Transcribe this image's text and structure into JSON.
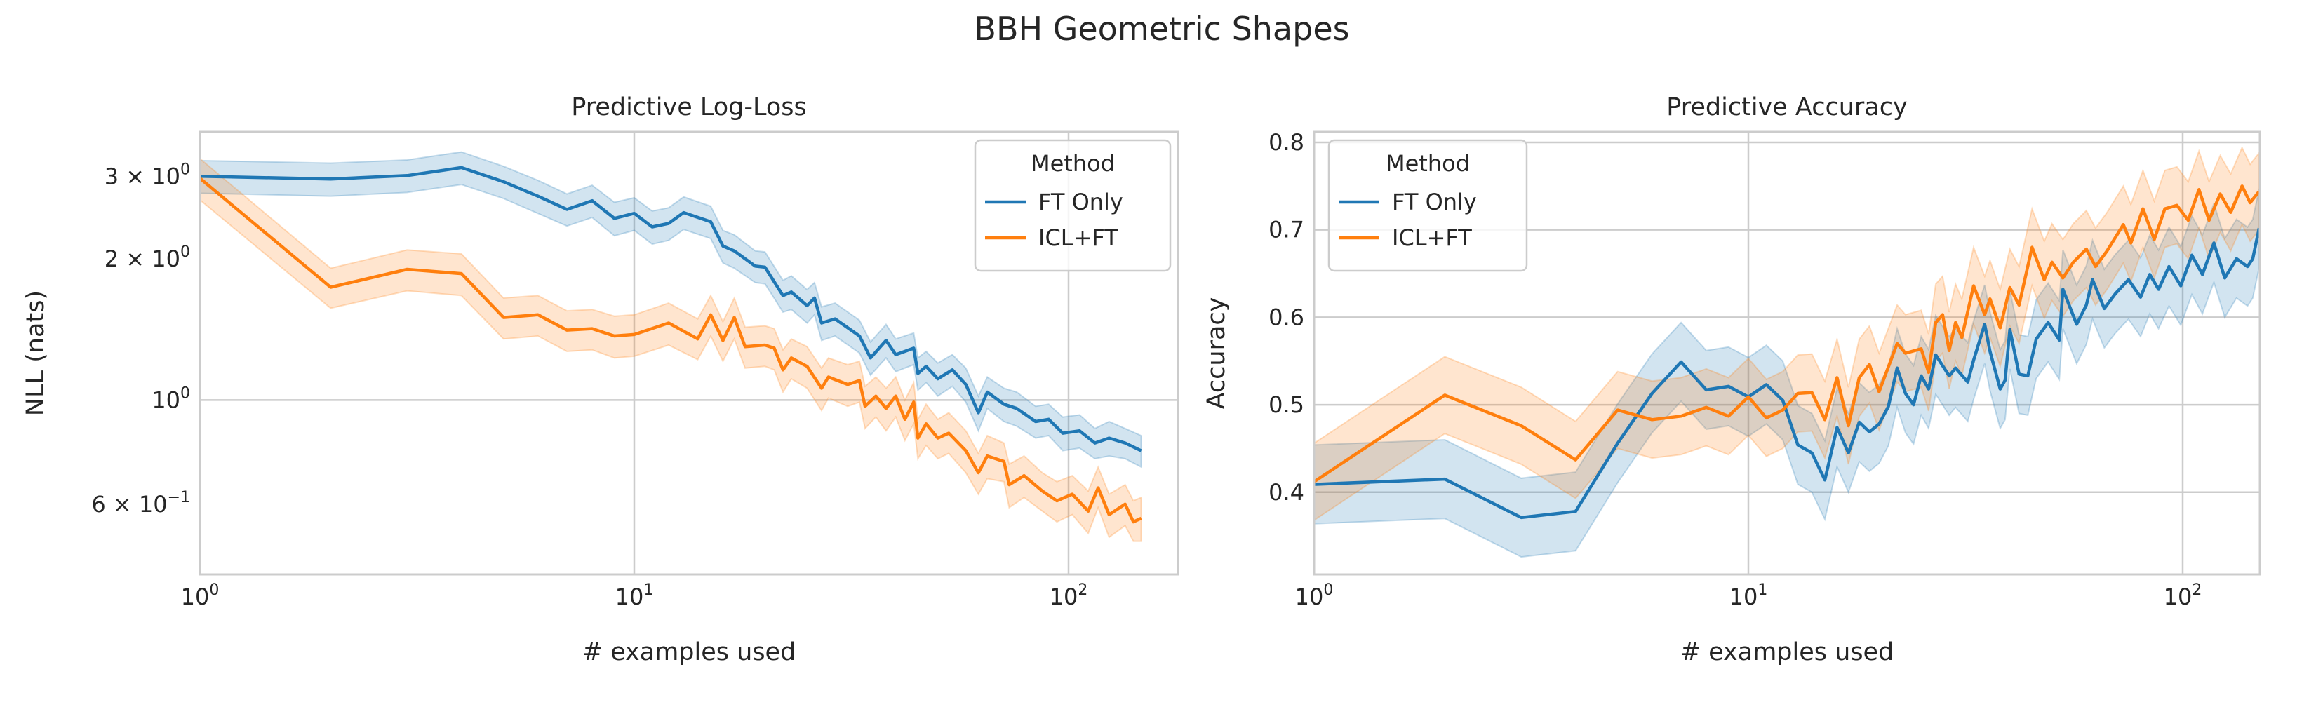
{
  "figure": {
    "title": "BBH Geometric Shapes"
  },
  "colors": {
    "FT Only": "#1f77b4",
    "ICL+FT": "#ff7f0e",
    "grid": "#cccccc",
    "text": "#262626"
  },
  "chart_data": [
    {
      "type": "line",
      "title": "Predictive Log-Loss",
      "xlabel": "# examples used",
      "ylabel": "NLL (nats)",
      "xscale": "log",
      "yscale": "log",
      "xlim": [
        1,
        230
      ],
      "ylim": [
        0.425,
        3.73
      ],
      "grid": true,
      "legend": {
        "title": "Method",
        "placement": "top-right",
        "entries": [
          "FT Only",
          "ICL+FT"
        ]
      },
      "xticks": [
        {
          "value": 1,
          "base": "10",
          "exp": "0"
        },
        {
          "value": 10,
          "base": "10",
          "exp": "1"
        },
        {
          "value": 100,
          "base": "10",
          "exp": "2"
        }
      ],
      "yticks": [
        {
          "value": 3,
          "mantissa": "3 × ",
          "base": "10",
          "exp": "0"
        },
        {
          "value": 2,
          "mantissa": "2 × ",
          "base": "10",
          "exp": "0"
        },
        {
          "value": 1,
          "mantissa": "",
          "base": "10",
          "exp": "0"
        },
        {
          "value": 0.6,
          "mantissa": "6 × ",
          "base": "10",
          "exp": "−1"
        }
      ],
      "series": [
        {
          "name": "FT Only",
          "x": [
            1,
            2,
            3,
            4,
            5,
            6,
            7,
            8,
            9,
            10,
            11,
            12,
            13,
            15,
            16,
            17,
            19,
            20,
            22,
            23,
            25,
            26,
            27,
            29,
            33,
            35,
            38,
            40,
            44,
            45,
            47,
            50,
            54,
            58,
            62,
            65,
            71,
            76,
            84,
            90,
            97,
            106,
            115,
            124,
            135,
            147
          ],
          "y": [
            3.0,
            2.96,
            3.01,
            3.13,
            2.92,
            2.72,
            2.55,
            2.66,
            2.44,
            2.5,
            2.34,
            2.38,
            2.51,
            2.4,
            2.13,
            2.08,
            1.93,
            1.92,
            1.67,
            1.7,
            1.59,
            1.65,
            1.46,
            1.49,
            1.37,
            1.23,
            1.34,
            1.25,
            1.29,
            1.14,
            1.18,
            1.11,
            1.16,
            1.08,
            0.94,
            1.04,
            0.98,
            0.96,
            0.9,
            0.91,
            0.85,
            0.86,
            0.81,
            0.83,
            0.81,
            0.78
          ],
          "ci_lower": [
            2.76,
            2.72,
            2.77,
            2.88,
            2.69,
            2.5,
            2.35,
            2.45,
            2.24,
            2.3,
            2.15,
            2.19,
            2.31,
            2.21,
            1.96,
            1.91,
            1.78,
            1.77,
            1.54,
            1.56,
            1.46,
            1.52,
            1.34,
            1.37,
            1.26,
            1.13,
            1.23,
            1.15,
            1.19,
            1.05,
            1.09,
            1.02,
            1.07,
            0.99,
            0.86,
            0.96,
            0.9,
            0.88,
            0.83,
            0.84,
            0.78,
            0.79,
            0.75,
            0.76,
            0.75,
            0.72
          ],
          "ci_upper": [
            3.24,
            3.2,
            3.25,
            3.38,
            3.15,
            2.94,
            2.75,
            2.87,
            2.64,
            2.7,
            2.53,
            2.57,
            2.71,
            2.59,
            2.3,
            2.25,
            2.08,
            2.07,
            1.8,
            1.84,
            1.72,
            1.78,
            1.58,
            1.61,
            1.48,
            1.33,
            1.45,
            1.35,
            1.39,
            1.23,
            1.27,
            1.2,
            1.25,
            1.17,
            1.02,
            1.12,
            1.06,
            1.04,
            0.97,
            0.98,
            0.92,
            0.93,
            0.87,
            0.9,
            0.87,
            0.84
          ]
        },
        {
          "name": "ICL+FT",
          "x": [
            1,
            2,
            3,
            4,
            5,
            6,
            7,
            8,
            9,
            10,
            12,
            14,
            15,
            16,
            17,
            18,
            20,
            21,
            22,
            23,
            25,
            27,
            28,
            31,
            33,
            34,
            36,
            38,
            40,
            42,
            44,
            45,
            47,
            50,
            53,
            58,
            62,
            65,
            71,
            73,
            79,
            87,
            94,
            102,
            111,
            117,
            124,
            135,
            141,
            147
          ],
          "y": [
            2.97,
            1.74,
            1.9,
            1.86,
            1.5,
            1.52,
            1.41,
            1.42,
            1.37,
            1.38,
            1.46,
            1.35,
            1.52,
            1.34,
            1.5,
            1.3,
            1.31,
            1.29,
            1.16,
            1.23,
            1.18,
            1.06,
            1.12,
            1.08,
            1.1,
            0.97,
            1.02,
            0.96,
            1.02,
            0.91,
            0.99,
            0.83,
            0.89,
            0.83,
            0.85,
            0.78,
            0.7,
            0.76,
            0.74,
            0.66,
            0.69,
            0.64,
            0.61,
            0.63,
            0.58,
            0.65,
            0.57,
            0.6,
            0.55,
            0.56
          ],
          "ci_lower": [
            2.67,
            1.57,
            1.71,
            1.67,
            1.35,
            1.37,
            1.27,
            1.28,
            1.23,
            1.24,
            1.31,
            1.22,
            1.37,
            1.21,
            1.35,
            1.17,
            1.18,
            1.16,
            1.04,
            1.11,
            1.06,
            0.95,
            1.01,
            0.97,
            0.99,
            0.87,
            0.92,
            0.86,
            0.92,
            0.82,
            0.89,
            0.75,
            0.8,
            0.75,
            0.77,
            0.7,
            0.63,
            0.68,
            0.67,
            0.59,
            0.62,
            0.58,
            0.55,
            0.57,
            0.52,
            0.59,
            0.51,
            0.54,
            0.5,
            0.5
          ],
          "ci_upper": [
            3.27,
            1.91,
            2.09,
            2.05,
            1.65,
            1.67,
            1.55,
            1.56,
            1.51,
            1.52,
            1.61,
            1.49,
            1.67,
            1.47,
            1.65,
            1.43,
            1.44,
            1.42,
            1.28,
            1.35,
            1.3,
            1.17,
            1.23,
            1.19,
            1.21,
            1.07,
            1.12,
            1.06,
            1.12,
            1.0,
            1.09,
            0.91,
            0.98,
            0.91,
            0.94,
            0.86,
            0.77,
            0.84,
            0.81,
            0.73,
            0.76,
            0.7,
            0.67,
            0.69,
            0.64,
            0.72,
            0.63,
            0.66,
            0.61,
            0.62
          ]
        }
      ]
    },
    {
      "type": "line",
      "title": "Predictive Accuracy",
      "xlabel": "# examples used",
      "ylabel": "Accuracy",
      "xscale": "log",
      "yscale": "linear",
      "xlim": [
        1,
        230
      ],
      "ylim": [
        0.306,
        0.812
      ],
      "grid": true,
      "legend": {
        "title": "Method",
        "placement": "top-left",
        "entries": [
          "FT Only",
          "ICL+FT"
        ]
      },
      "xticks": [
        {
          "value": 1,
          "base": "10",
          "exp": "0"
        },
        {
          "value": 10,
          "base": "10",
          "exp": "1"
        },
        {
          "value": 100,
          "base": "10",
          "exp": "2"
        }
      ],
      "yticks": [
        {
          "value": 0.4,
          "label": "0.4"
        },
        {
          "value": 0.5,
          "label": "0.5"
        },
        {
          "value": 0.6,
          "label": "0.6"
        },
        {
          "value": 0.7,
          "label": "0.7"
        },
        {
          "value": 0.8,
          "label": "0.8"
        }
      ],
      "series": [
        {
          "name": "FT Only",
          "x": [
            1,
            2,
            3,
            4,
            5,
            6,
            7,
            8,
            9,
            10,
            11,
            12,
            13,
            14,
            15,
            16,
            17,
            18,
            19,
            20,
            21,
            22,
            23,
            24,
            25,
            26,
            27,
            29,
            30,
            32,
            33,
            35,
            36,
            38,
            39,
            40,
            42,
            44,
            46,
            49,
            52,
            53,
            57,
            60,
            62,
            66,
            70,
            75,
            80,
            84,
            88,
            93,
            99,
            105,
            111,
            118,
            125,
            133,
            141,
            145,
            150
          ],
          "y": [
            0.409,
            0.415,
            0.371,
            0.378,
            0.456,
            0.513,
            0.549,
            0.517,
            0.521,
            0.509,
            0.523,
            0.505,
            0.454,
            0.445,
            0.414,
            0.474,
            0.445,
            0.48,
            0.469,
            0.478,
            0.498,
            0.542,
            0.513,
            0.5,
            0.533,
            0.518,
            0.557,
            0.533,
            0.542,
            0.526,
            0.551,
            0.592,
            0.561,
            0.518,
            0.528,
            0.586,
            0.535,
            0.533,
            0.575,
            0.594,
            0.574,
            0.632,
            0.592,
            0.614,
            0.643,
            0.61,
            0.627,
            0.643,
            0.623,
            0.649,
            0.632,
            0.658,
            0.636,
            0.671,
            0.649,
            0.685,
            0.645,
            0.667,
            0.658,
            0.667,
            0.702
          ],
          "ci_lower": [
            0.364,
            0.37,
            0.326,
            0.333,
            0.411,
            0.468,
            0.504,
            0.472,
            0.476,
            0.464,
            0.478,
            0.46,
            0.409,
            0.4,
            0.369,
            0.429,
            0.4,
            0.435,
            0.424,
            0.433,
            0.453,
            0.497,
            0.468,
            0.455,
            0.488,
            0.473,
            0.512,
            0.488,
            0.497,
            0.481,
            0.506,
            0.547,
            0.516,
            0.473,
            0.483,
            0.541,
            0.49,
            0.488,
            0.53,
            0.549,
            0.529,
            0.587,
            0.547,
            0.569,
            0.598,
            0.565,
            0.582,
            0.598,
            0.578,
            0.604,
            0.587,
            0.613,
            0.591,
            0.626,
            0.604,
            0.64,
            0.6,
            0.622,
            0.613,
            0.622,
            0.657
          ],
          "ci_upper": [
            0.454,
            0.46,
            0.416,
            0.423,
            0.501,
            0.558,
            0.594,
            0.562,
            0.566,
            0.554,
            0.568,
            0.55,
            0.499,
            0.49,
            0.459,
            0.519,
            0.49,
            0.525,
            0.514,
            0.523,
            0.543,
            0.587,
            0.558,
            0.545,
            0.578,
            0.563,
            0.602,
            0.578,
            0.587,
            0.571,
            0.596,
            0.637,
            0.606,
            0.563,
            0.573,
            0.631,
            0.58,
            0.578,
            0.62,
            0.639,
            0.619,
            0.677,
            0.637,
            0.659,
            0.688,
            0.655,
            0.672,
            0.688,
            0.668,
            0.694,
            0.677,
            0.703,
            0.681,
            0.716,
            0.694,
            0.73,
            0.69,
            0.712,
            0.703,
            0.712,
            0.747
          ]
        },
        {
          "name": "ICL+FT",
          "x": [
            1,
            2,
            3,
            4,
            5,
            6,
            7,
            8,
            9,
            10,
            11,
            12,
            13,
            14,
            15,
            16,
            17,
            18,
            19,
            20,
            22,
            23,
            25,
            26,
            27,
            28,
            29,
            30,
            31,
            33,
            35,
            36,
            38,
            40,
            42,
            45,
            48,
            50,
            53,
            56,
            60,
            63,
            67,
            73,
            76,
            81,
            86,
            91,
            97,
            103,
            109,
            115,
            122,
            129,
            137,
            143,
            150
          ],
          "y": [
            0.412,
            0.511,
            0.476,
            0.437,
            0.494,
            0.483,
            0.487,
            0.497,
            0.487,
            0.509,
            0.485,
            0.494,
            0.513,
            0.514,
            0.483,
            0.531,
            0.476,
            0.531,
            0.546,
            0.515,
            0.57,
            0.559,
            0.564,
            0.537,
            0.594,
            0.603,
            0.562,
            0.594,
            0.577,
            0.636,
            0.603,
            0.621,
            0.588,
            0.634,
            0.614,
            0.68,
            0.643,
            0.663,
            0.645,
            0.663,
            0.678,
            0.658,
            0.676,
            0.706,
            0.685,
            0.724,
            0.689,
            0.724,
            0.728,
            0.711,
            0.746,
            0.711,
            0.741,
            0.72,
            0.75,
            0.731,
            0.744
          ],
          "ci_lower": [
            0.368,
            0.467,
            0.432,
            0.393,
            0.45,
            0.439,
            0.443,
            0.453,
            0.443,
            0.465,
            0.441,
            0.45,
            0.469,
            0.47,
            0.439,
            0.487,
            0.432,
            0.487,
            0.502,
            0.471,
            0.526,
            0.515,
            0.52,
            0.493,
            0.55,
            0.559,
            0.518,
            0.55,
            0.533,
            0.592,
            0.559,
            0.577,
            0.544,
            0.59,
            0.57,
            0.636,
            0.599,
            0.619,
            0.601,
            0.619,
            0.634,
            0.614,
            0.632,
            0.662,
            0.641,
            0.68,
            0.645,
            0.68,
            0.684,
            0.667,
            0.702,
            0.667,
            0.697,
            0.676,
            0.706,
            0.687,
            0.7
          ],
          "ci_upper": [
            0.456,
            0.555,
            0.52,
            0.481,
            0.538,
            0.527,
            0.531,
            0.541,
            0.531,
            0.553,
            0.529,
            0.538,
            0.557,
            0.558,
            0.527,
            0.575,
            0.52,
            0.575,
            0.59,
            0.559,
            0.614,
            0.603,
            0.608,
            0.581,
            0.638,
            0.647,
            0.606,
            0.638,
            0.621,
            0.68,
            0.647,
            0.665,
            0.632,
            0.678,
            0.658,
            0.724,
            0.687,
            0.707,
            0.689,
            0.707,
            0.722,
            0.702,
            0.72,
            0.75,
            0.729,
            0.768,
            0.733,
            0.768,
            0.772,
            0.755,
            0.79,
            0.755,
            0.785,
            0.764,
            0.794,
            0.775,
            0.788
          ]
        }
      ]
    }
  ]
}
